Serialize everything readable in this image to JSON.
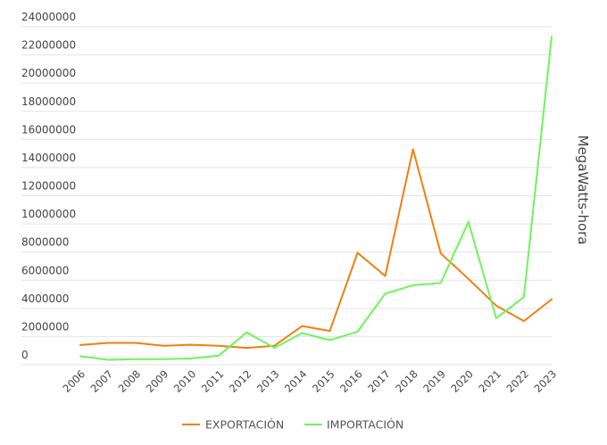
{
  "chart_data": {
    "type": "line",
    "title": "",
    "xlabel": "",
    "ylabel": "MegaWatts-hora",
    "categories": [
      "2006",
      "2007",
      "2008",
      "2009",
      "2010",
      "2011",
      "2012",
      "2013",
      "2014",
      "2015",
      "2016",
      "2017",
      "2018",
      "2019",
      "2020",
      "2021",
      "2022",
      "2023"
    ],
    "y_ticks": [
      "0",
      "2000000",
      "4000000",
      "6000000",
      "8000000",
      "10000000",
      "12000000",
      "14000000",
      "16000000",
      "18000000",
      "20000000",
      "22000000",
      "24000000"
    ],
    "ylim": [
      0,
      24000000
    ],
    "grid": true,
    "legend_position": "bottom-center",
    "series": [
      {
        "name": "EXPORTACIÓN",
        "color": "#f07f10",
        "values": [
          1400000,
          1550000,
          1550000,
          1350000,
          1420000,
          1350000,
          1200000,
          1350000,
          2750000,
          2400000,
          7950000,
          6300000,
          15300000,
          7900000,
          6100000,
          4200000,
          3100000,
          4650000
        ]
      },
      {
        "name": "IMPORTACIÓN",
        "color": "#6ef55a",
        "values": [
          600000,
          350000,
          400000,
          400000,
          450000,
          650000,
          2300000,
          1200000,
          2250000,
          1750000,
          2350000,
          5050000,
          5650000,
          5800000,
          10150000,
          3300000,
          4800000,
          23300000
        ]
      }
    ]
  }
}
